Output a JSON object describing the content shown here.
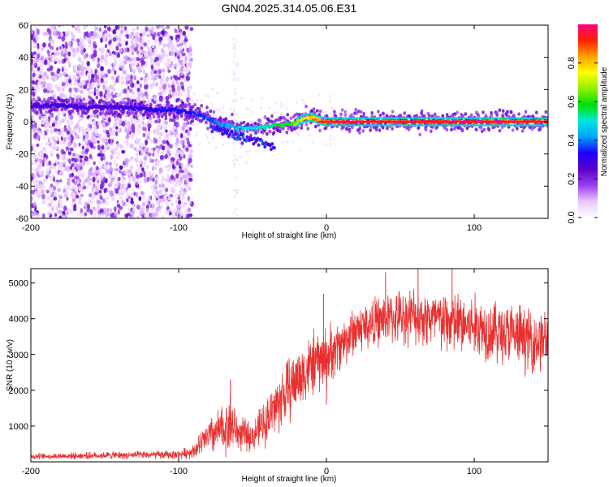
{
  "title": "GN04.2025.314.05.06.E31",
  "chart_data": [
    {
      "type": "heatmap",
      "name": "spectrogram",
      "xlabel": "Height of straight line (km)",
      "ylabel": "Frequency (Hz)",
      "xlim": [
        -200,
        150
      ],
      "ylim": [
        -60,
        60
      ],
      "x_ticks": [
        -200,
        -100,
        0,
        100
      ],
      "y_ticks": [
        -60,
        -40,
        -20,
        0,
        20,
        40,
        60
      ],
      "colorbar": {
        "label": "Normalized spectral amplitude",
        "range": [
          0,
          1
        ],
        "ticks": [
          "0.0",
          "0.2",
          "0.4",
          "0.6",
          "0.8"
        ],
        "stops": [
          "#ffffff",
          "#e8c8ff",
          "#9a3df0",
          "#5a00c8",
          "#1a00ff",
          "#00a0ff",
          "#00e8e0",
          "#00e000",
          "#90f000",
          "#ffff00",
          "#ffa000",
          "#ff2000",
          "#ff0080"
        ]
      },
      "ridge_frequency": [
        {
          "x": -200,
          "f": 10
        },
        {
          "x": -180,
          "f": 10
        },
        {
          "x": -160,
          "f": 9
        },
        {
          "x": -140,
          "f": 9
        },
        {
          "x": -120,
          "f": 8
        },
        {
          "x": -100,
          "f": 7
        },
        {
          "x": -90,
          "f": 5
        },
        {
          "x": -80,
          "f": 2
        },
        {
          "x": -70,
          "f": -2
        },
        {
          "x": -60,
          "f": -4
        },
        {
          "x": -50,
          "f": -4
        },
        {
          "x": -40,
          "f": -3
        },
        {
          "x": -30,
          "f": -2
        },
        {
          "x": -20,
          "f": 0
        },
        {
          "x": -15,
          "f": 2
        },
        {
          "x": -10,
          "f": 3
        },
        {
          "x": -5,
          "f": 1
        },
        {
          "x": 0,
          "f": 0
        },
        {
          "x": 50,
          "f": 0
        },
        {
          "x": 100,
          "f": 0
        },
        {
          "x": 150,
          "f": 0
        }
      ],
      "ridge_amplitude": [
        {
          "x": -200,
          "a": 0.3
        },
        {
          "x": -150,
          "a": 0.3
        },
        {
          "x": -110,
          "a": 0.35
        },
        {
          "x": -80,
          "a": 0.4
        },
        {
          "x": -60,
          "a": 0.5
        },
        {
          "x": -40,
          "a": 0.55
        },
        {
          "x": -20,
          "a": 0.7
        },
        {
          "x": -10,
          "a": 0.9
        },
        {
          "x": 0,
          "a": 0.95
        },
        {
          "x": 50,
          "a": 1.0
        },
        {
          "x": 100,
          "a": 1.0
        },
        {
          "x": 150,
          "a": 0.95
        }
      ],
      "lower_branch": [
        {
          "x": -75,
          "f": -4
        },
        {
          "x": -65,
          "f": -8
        },
        {
          "x": -55,
          "f": -10
        },
        {
          "x": -45,
          "f": -12
        },
        {
          "x": -40,
          "f": -15
        }
      ],
      "noise_region_x": [
        -200,
        -95
      ]
    },
    {
      "type": "line",
      "name": "snr",
      "xlabel": "Height of straight line (km)",
      "ylabel": "SNR (10 * v/v)",
      "xlim": [
        -200,
        150
      ],
      "ylim": [
        0,
        5400
      ],
      "x_ticks": [
        -200,
        -100,
        0,
        100
      ],
      "y_ticks": [
        1000,
        2000,
        3000,
        4000,
        5000
      ],
      "color": "#e83030",
      "envelope": [
        {
          "x": -200,
          "mean": 150,
          "spread": 80
        },
        {
          "x": -150,
          "mean": 180,
          "spread": 100
        },
        {
          "x": -100,
          "mean": 200,
          "spread": 120
        },
        {
          "x": -90,
          "mean": 300,
          "spread": 200
        },
        {
          "x": -80,
          "mean": 700,
          "spread": 500
        },
        {
          "x": -70,
          "mean": 900,
          "spread": 700
        },
        {
          "x": -65,
          "mean": 1100,
          "spread": 900
        },
        {
          "x": -60,
          "mean": 800,
          "spread": 500
        },
        {
          "x": -50,
          "mean": 700,
          "spread": 400
        },
        {
          "x": -40,
          "mean": 1200,
          "spread": 700
        },
        {
          "x": -30,
          "mean": 1800,
          "spread": 900
        },
        {
          "x": -20,
          "mean": 2300,
          "spread": 900
        },
        {
          "x": -10,
          "mean": 2700,
          "spread": 900
        },
        {
          "x": 0,
          "mean": 2900,
          "spread": 900
        },
        {
          "x": 10,
          "mean": 3300,
          "spread": 700
        },
        {
          "x": 20,
          "mean": 3700,
          "spread": 700
        },
        {
          "x": 40,
          "mean": 4000,
          "spread": 700
        },
        {
          "x": 60,
          "mean": 4100,
          "spread": 800
        },
        {
          "x": 80,
          "mean": 3900,
          "spread": 900
        },
        {
          "x": 100,
          "mean": 3800,
          "spread": 900
        },
        {
          "x": 120,
          "mean": 3600,
          "spread": 900
        },
        {
          "x": 140,
          "mean": 3400,
          "spread": 900
        },
        {
          "x": 150,
          "mean": 3400,
          "spread": 900
        }
      ],
      "spikes": [
        {
          "x": -65,
          "y": 2300
        },
        {
          "x": -2,
          "y": 4700
        },
        {
          "x": 0,
          "y": 1600
        },
        {
          "x": 62,
          "y": 5400
        },
        {
          "x": 85,
          "y": 5400
        },
        {
          "x": 40,
          "y": 5300
        }
      ]
    }
  ]
}
